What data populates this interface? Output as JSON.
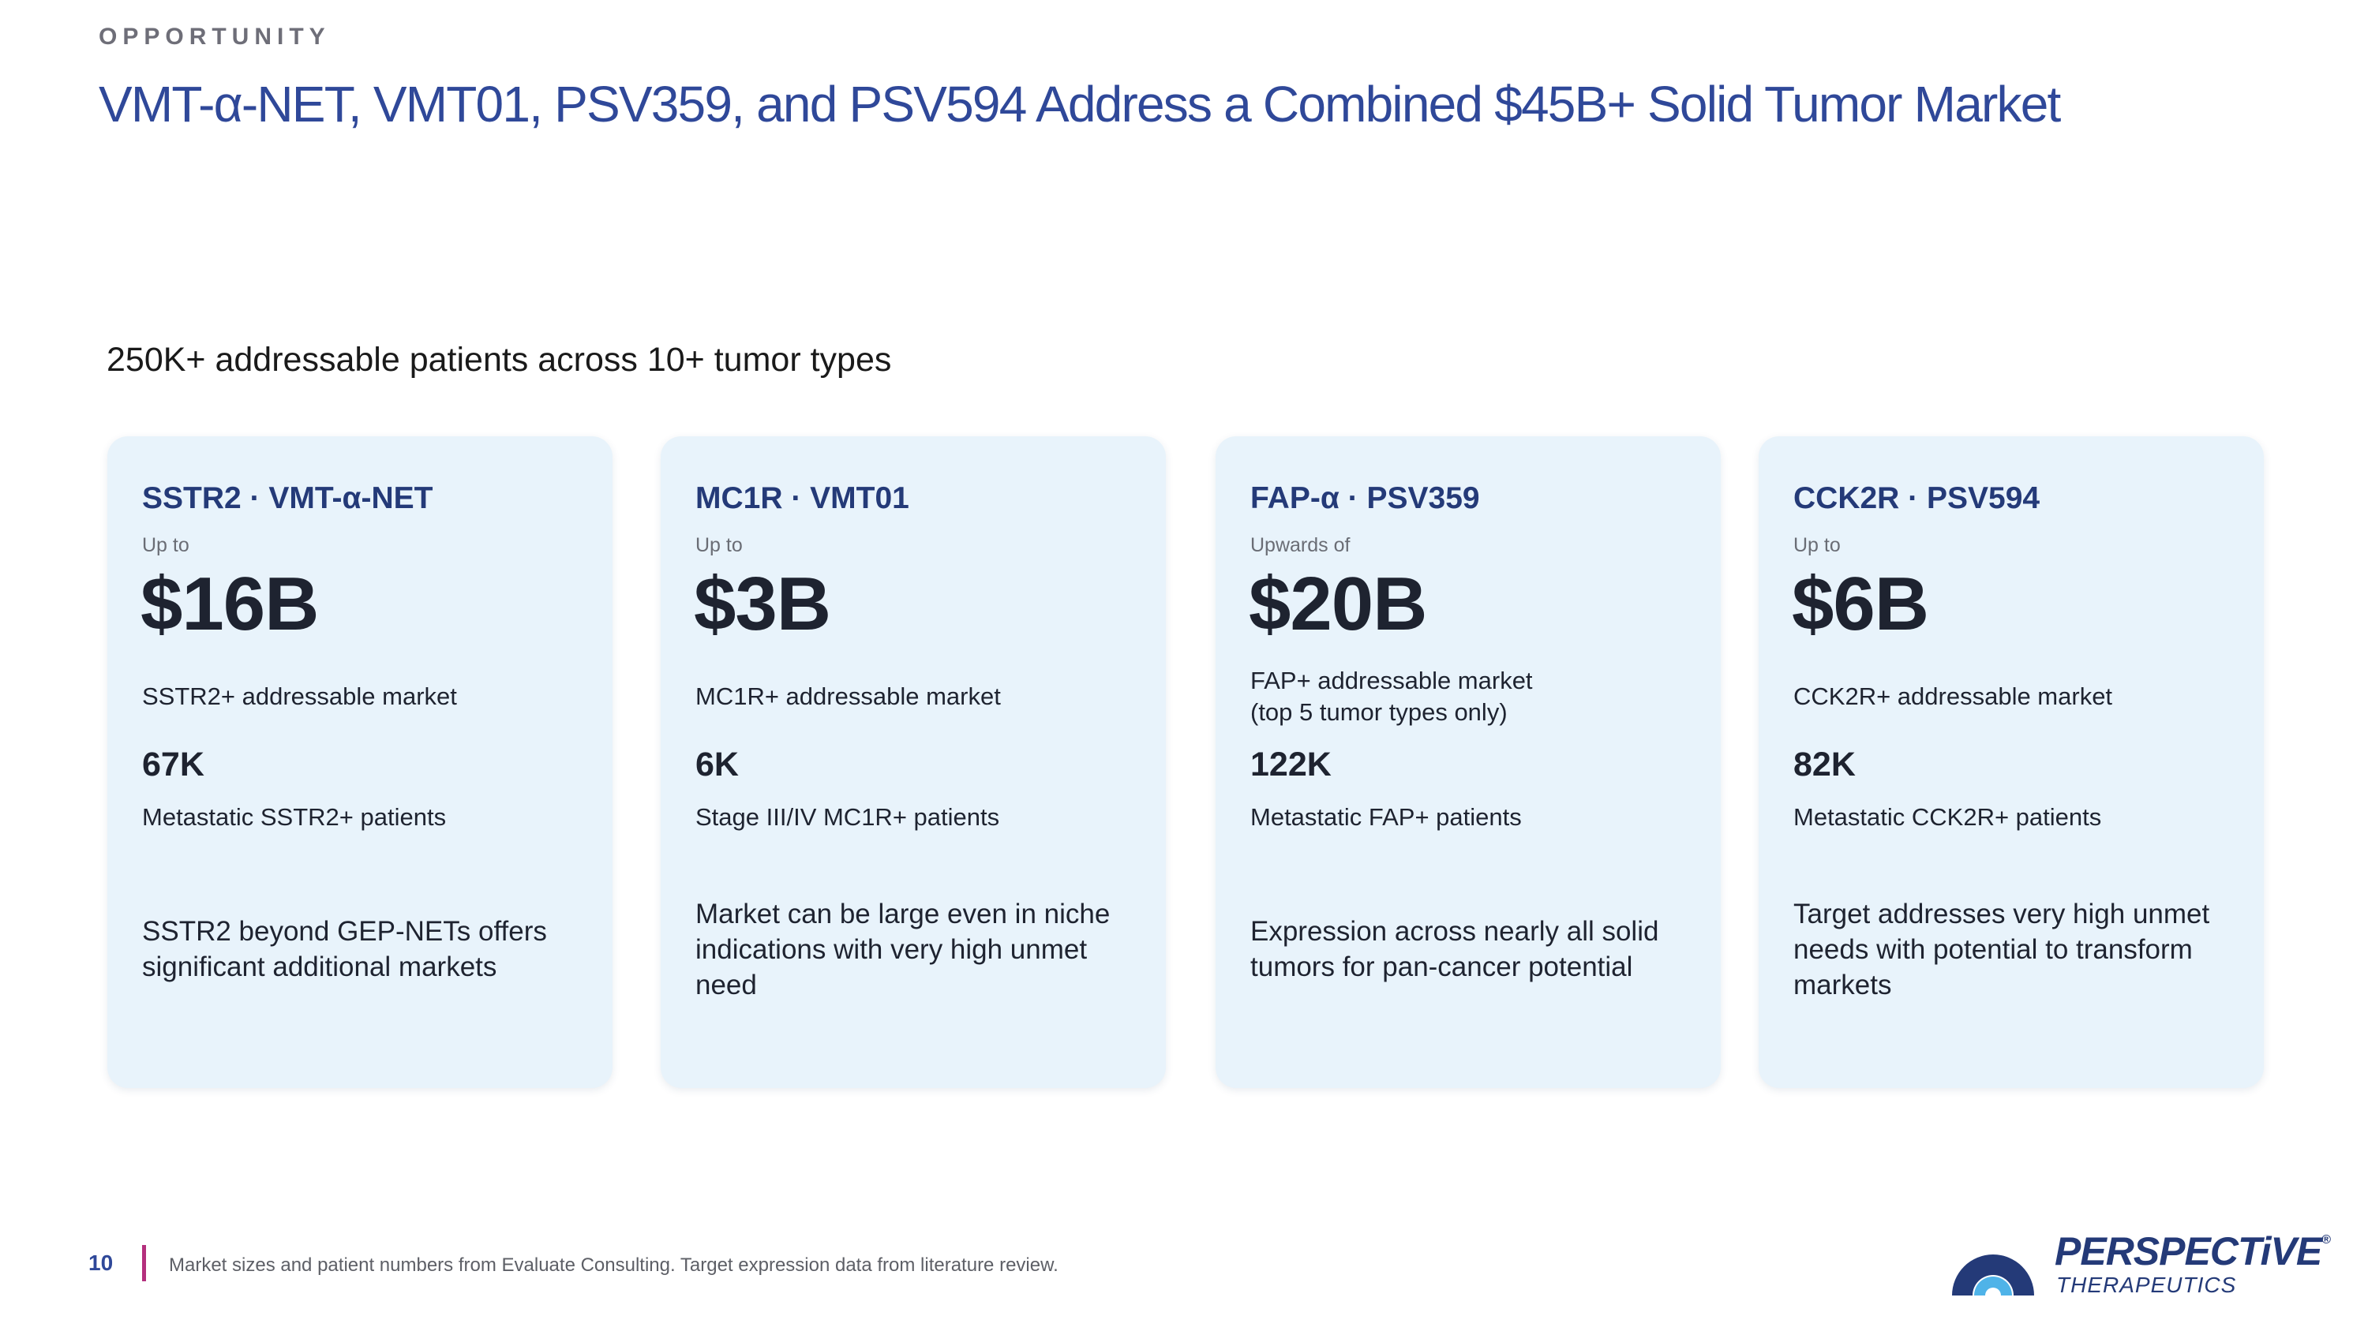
{
  "header": {
    "eyebrow": "OPPORTUNITY",
    "title": "VMT-α-NET, VMT01, PSV359, and PSV594 Address a Combined $45B+ Solid Tumor Market"
  },
  "subtitle": "250K+ addressable patients across 10+ tumor types",
  "cards": [
    {
      "title": "SSTR2 · VMT-α-NET",
      "prefix": "Up to",
      "value": "$16B",
      "market_lines": [
        "SSTR2+ addressable market"
      ],
      "patients_count": "67K",
      "patients_label": "Metastatic SSTR2+ patients",
      "description_lines": [
        "SSTR2 beyond GEP-NETs offers",
        "significant additional markets"
      ]
    },
    {
      "title": "MC1R · VMT01",
      "prefix": "Up to",
      "value": "$3B",
      "market_lines": [
        "MC1R+ addressable market"
      ],
      "patients_count": "6K",
      "patients_label": "Stage III/IV MC1R+ patients",
      "description_lines": [
        "Market can be large even in niche",
        "indications with very high unmet",
        "need"
      ]
    },
    {
      "title": "FAP-α · PSV359",
      "prefix": "Upwards of",
      "value": "$20B",
      "market_lines": [
        "FAP+ addressable market",
        "(top 5 tumor types only)"
      ],
      "patients_count": "122K",
      "patients_label": "Metastatic FAP+ patients",
      "description_lines": [
        "Expression across nearly all solid",
        "tumors for pan-cancer potential"
      ]
    },
    {
      "title": "CCK2R · PSV594",
      "prefix": "Up to",
      "value": "$6B",
      "market_lines": [
        "CCK2R+ addressable market"
      ],
      "patients_count": "82K",
      "patients_label": "Metastatic CCK2R+ patients",
      "description_lines": [
        "Target addresses very high unmet",
        "needs with potential to transform",
        "markets"
      ]
    }
  ],
  "footer": {
    "page_number": "10",
    "note": "Market sizes and patient numbers from Evaluate Consulting. Target expression data from literature review."
  },
  "logo": {
    "name": "PERSPECTiVE",
    "registered": "®",
    "sub": "THERAPEUTICS",
    "icon": "perspective-arch-icon"
  },
  "colors": {
    "title": "#2f4899",
    "card_bg": "#e8f3fb",
    "accent_bar": "#b42f7d",
    "logo_blue": "#243a78",
    "logo_light": "#4fb3e8"
  }
}
